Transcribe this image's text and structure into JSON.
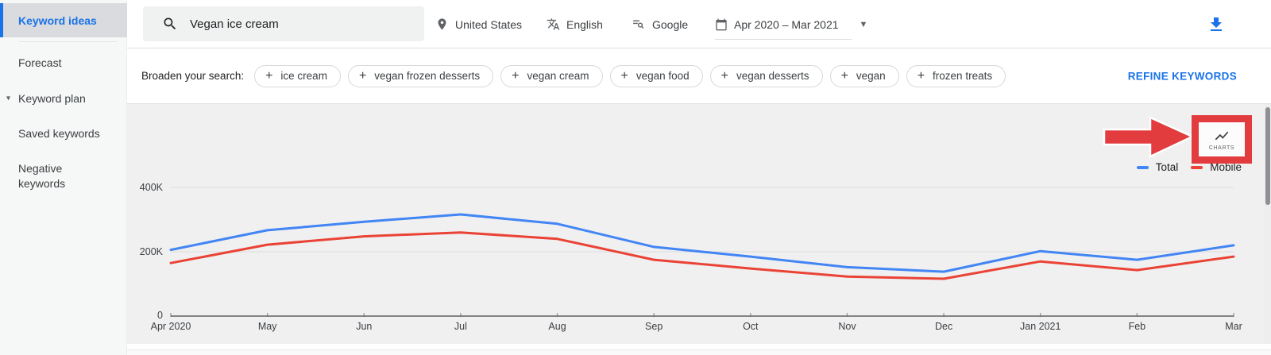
{
  "sidebar": {
    "items": [
      {
        "label": "Keyword ideas",
        "selected": true
      },
      {
        "label": "Forecast",
        "selected": false
      },
      {
        "label": "Keyword plan",
        "selected": false,
        "expanded": true
      },
      {
        "label": "Saved keywords",
        "selected": false
      },
      {
        "label": "Negative keywords",
        "selected": false
      }
    ]
  },
  "header": {
    "search": {
      "value": "Vegan ice cream"
    },
    "location": "United States",
    "language": "English",
    "network": "Google",
    "date_range": "Apr 2020 – Mar 2021",
    "icons": [
      "search-icon",
      "location-pin-icon",
      "translate-icon",
      "search-network-icon",
      "calendar-icon",
      "download-icon",
      "chevron-down-icon"
    ]
  },
  "broaden": {
    "label": "Broaden your search:",
    "chips": [
      "ice cream",
      "vegan frozen desserts",
      "vegan cream",
      "vegan food",
      "vegan desserts",
      "vegan",
      "frozen treats"
    ],
    "refine_label": "REFINE KEYWORDS"
  },
  "annotation": {
    "charts_button_label": "CHARTS",
    "charts_button_icon": "line-chart-icon",
    "highlight_color": "#e23c3e"
  },
  "chart_data": {
    "type": "line",
    "x": [
      "Apr 2020",
      "May",
      "Jun",
      "Jul",
      "Aug",
      "Sep",
      "Oct",
      "Nov",
      "Dec",
      "Jan 2021",
      "Feb",
      "Mar"
    ],
    "series": [
      {
        "name": "Total",
        "color": "#4285f4",
        "values": [
          206000,
          267000,
          293000,
          316000,
          287000,
          215000,
          185000,
          152000,
          138000,
          202000,
          175000,
          220000
        ]
      },
      {
        "name": "Mobile",
        "color": "#ea4335",
        "values": [
          165000,
          222000,
          248000,
          260000,
          240000,
          175000,
          148000,
          123000,
          116000,
          170000,
          143000,
          185000
        ]
      }
    ],
    "ylim": [
      0,
      400000
    ],
    "yticks": [
      "0",
      "200K",
      "400K"
    ],
    "ylabel": "",
    "xlabel": "",
    "grid": true,
    "legend_position": "top-right"
  },
  "colors": {
    "accent_blue": "#1a73e8",
    "selected_bg": "#d9dbde",
    "chart_bg": "#f0f0f1",
    "annotation_red": "#e23c3e"
  }
}
